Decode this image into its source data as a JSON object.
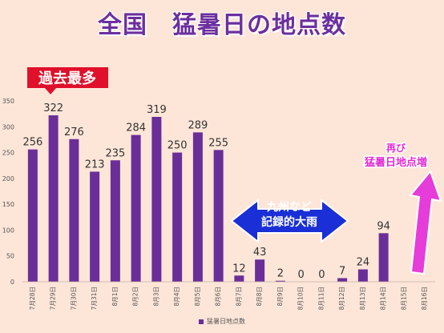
{
  "title": "全国　猛暑日の地点数",
  "annotations": {
    "record": "過去最多",
    "kyushu_line1": "九州など",
    "kyushu_line2": "記録的大雨",
    "rise_line1": "再び",
    "rise_line2": "猛暑日地点増"
  },
  "colors": {
    "bar": "#6a2e98",
    "title": "#6b2f9e",
    "badge": "#e0102a",
    "arrow_blue": "#1a2fd6",
    "arrow_magenta": "#e63cd9"
  },
  "chart_data": {
    "type": "bar",
    "categories": [
      "7月28日",
      "7月29日",
      "7月30日",
      "7月31日",
      "8月1日",
      "8月2日",
      "8月3日",
      "8月4日",
      "8月5日",
      "8月6日",
      "8月7日",
      "8月8日",
      "8月9日",
      "8月10日",
      "8月11日",
      "8月12日",
      "8月13日",
      "8月14日",
      "8月15日",
      "8月16日"
    ],
    "series": [
      {
        "name": "猛暑日地点数",
        "values": [
          256,
          322,
          276,
          213,
          235,
          284,
          319,
          250,
          289,
          255,
          12,
          43,
          2,
          0,
          0,
          7,
          24,
          94,
          null,
          null
        ]
      }
    ],
    "data_labels": [
      "256",
      "322",
      "276",
      "213",
      "235",
      "284",
      "319",
      "250",
      "289",
      "255",
      "12",
      "43",
      "2",
      "0",
      "0",
      "7",
      "24",
      "94",
      "",
      ""
    ],
    "y_ticks": [
      0,
      50,
      100,
      150,
      200,
      250,
      300,
      350
    ],
    "ylim": [
      0,
      350
    ],
    "legend": "bottom",
    "grid": false
  }
}
